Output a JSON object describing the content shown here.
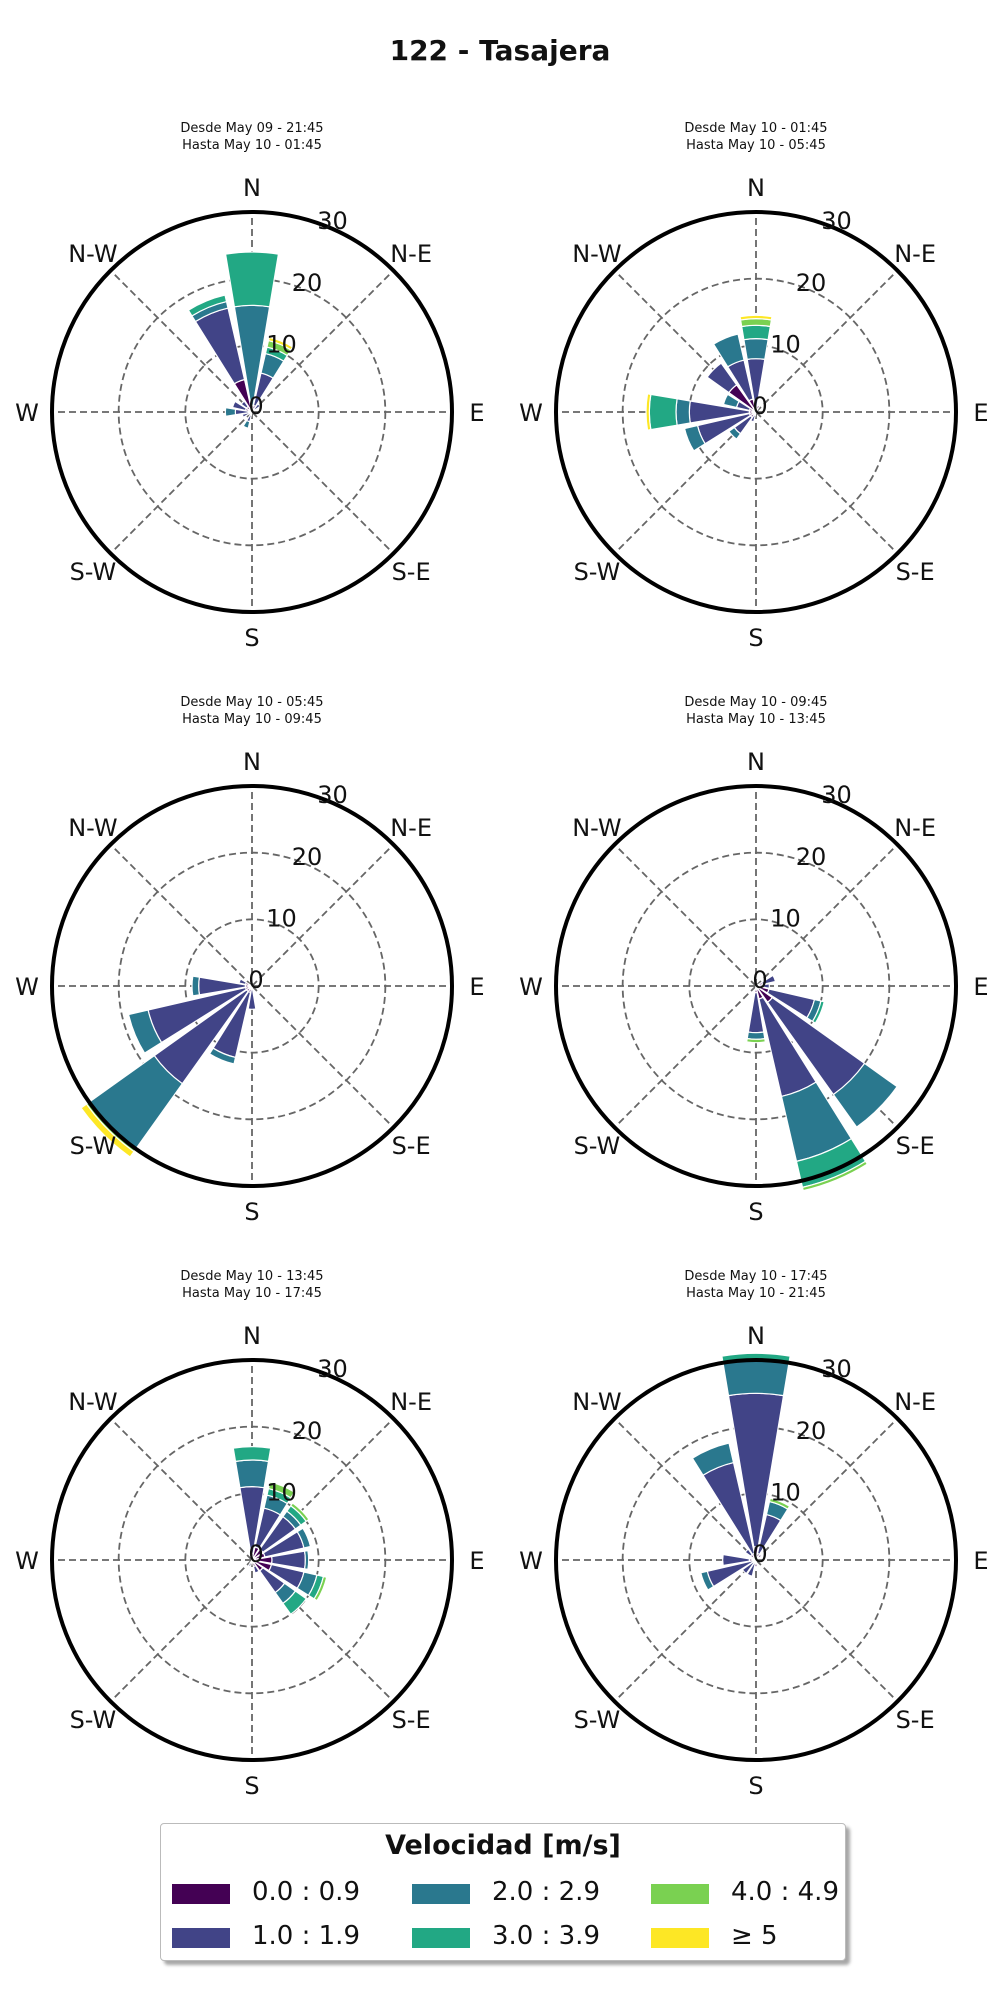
{
  "title": "122 - Tasajera",
  "legend": {
    "title": "Velocidad [m/s]",
    "bins": [
      {
        "label": "0.0 : 0.9",
        "color": "#440154"
      },
      {
        "label": "1.0 : 1.9",
        "color": "#414487"
      },
      {
        "label": "2.0 : 2.9",
        "color": "#2a788e"
      },
      {
        "label": "3.0 : 3.9",
        "color": "#22a884"
      },
      {
        "label": "4.0 : 4.9",
        "color": "#7ad151"
      },
      {
        "label": "≥  5",
        "color": "#fde725"
      }
    ]
  },
  "chart_data": [
    {
      "type": "windrose",
      "title_line1": "Desde May 09 - 21:45",
      "title_line2": "Hasta May 10 - 01:45",
      "direction_labels": [
        "N",
        "N-E",
        "E",
        "S-E",
        "S",
        "S-W",
        "W",
        "N-W"
      ],
      "rings": [
        0,
        10,
        20,
        30
      ],
      "rmax": 30,
      "sectors": [
        {
          "dir": 0,
          "values": [
            1,
            0,
            15,
            8,
            0,
            0
          ]
        },
        {
          "dir": 22.5,
          "values": [
            1,
            5,
            3,
            1,
            1,
            0.5
          ]
        },
        {
          "dir": 45,
          "values": [
            0.5,
            1,
            0,
            0,
            0,
            0
          ]
        },
        {
          "dir": 202.5,
          "values": [
            0.5,
            1,
            1,
            0,
            0,
            0
          ]
        },
        {
          "dir": 247.5,
          "values": [
            0.5,
            1,
            0,
            0,
            0,
            0
          ]
        },
        {
          "dir": 270,
          "values": [
            0.5,
            2,
            1.5,
            0,
            0,
            0
          ]
        },
        {
          "dir": 292.5,
          "values": [
            1,
            2,
            0,
            0,
            0,
            0
          ]
        },
        {
          "dir": 315,
          "values": [
            1,
            1,
            0,
            0,
            0,
            0
          ]
        },
        {
          "dir": 337.5,
          "values": [
            5,
            11,
            1,
            1,
            0,
            0
          ]
        }
      ]
    },
    {
      "type": "windrose",
      "title_line1": "Desde May 10 - 01:45",
      "title_line2": "Hasta May 10 - 05:45",
      "direction_labels": [
        "N",
        "N-E",
        "E",
        "S-E",
        "S",
        "S-W",
        "W",
        "N-W"
      ],
      "rings": [
        0,
        10,
        20,
        30
      ],
      "rmax": 30,
      "sectors": [
        {
          "dir": 0,
          "values": [
            0,
            8,
            3,
            2,
            1,
            0.5
          ]
        },
        {
          "dir": 22.5,
          "values": [
            1,
            0,
            0,
            0,
            0,
            0
          ]
        },
        {
          "dir": 202.5,
          "values": [
            0.5,
            1,
            0,
            0,
            0,
            0
          ]
        },
        {
          "dir": 225,
          "values": [
            1,
            3,
            1,
            0,
            0,
            0
          ]
        },
        {
          "dir": 247.5,
          "values": [
            1,
            8,
            2,
            0,
            0,
            0
          ]
        },
        {
          "dir": 270,
          "values": [
            1,
            9,
            2,
            4,
            0,
            0.5
          ]
        },
        {
          "dir": 292.5,
          "values": [
            1,
            2,
            2,
            0,
            0,
            0
          ]
        },
        {
          "dir": 315,
          "values": [
            5,
            4,
            0,
            0,
            0,
            0
          ]
        },
        {
          "dir": 337.5,
          "values": [
            2,
            6,
            4,
            0,
            0,
            0
          ]
        }
      ]
    },
    {
      "type": "windrose",
      "title_line1": "Desde May 10 - 05:45",
      "title_line2": "Hasta May 10 - 09:45",
      "direction_labels": [
        "N",
        "N-E",
        "E",
        "S-E",
        "S",
        "S-W",
        "W",
        "N-W"
      ],
      "rings": [
        0,
        10,
        20,
        30
      ],
      "rmax": 30,
      "sectors": [
        {
          "dir": 0,
          "values": [
            1,
            0,
            0,
            0,
            0,
            0
          ]
        },
        {
          "dir": 180,
          "values": [
            0.5,
            3,
            0,
            0,
            0,
            0
          ]
        },
        {
          "dir": 202.5,
          "values": [
            1,
            10,
            1,
            0,
            0,
            0
          ]
        },
        {
          "dir": 225,
          "values": [
            1,
            17,
            12,
            0,
            0.5,
            1
          ]
        },
        {
          "dir": 247.5,
          "values": [
            1,
            15,
            3,
            0,
            0,
            0
          ]
        },
        {
          "dir": 270,
          "values": [
            1,
            7,
            1,
            0,
            0,
            0
          ]
        },
        {
          "dir": 292.5,
          "values": [
            1,
            1,
            0,
            0,
            0,
            0
          ]
        }
      ]
    },
    {
      "type": "windrose",
      "title_line1": "Desde May 10 - 09:45",
      "title_line2": "Hasta May 10 - 13:45",
      "direction_labels": [
        "N",
        "N-E",
        "E",
        "S-E",
        "S",
        "S-W",
        "W",
        "N-W"
      ],
      "rings": [
        0,
        10,
        20,
        30
      ],
      "rmax": 30,
      "sectors": [
        {
          "dir": 67.5,
          "values": [
            1,
            2,
            0,
            0,
            0,
            0
          ]
        },
        {
          "dir": 90,
          "values": [
            1,
            1,
            0,
            0,
            0,
            0
          ]
        },
        {
          "dir": 112.5,
          "values": [
            2,
            7,
            1,
            0.5,
            0,
            0
          ]
        },
        {
          "dir": 135,
          "values": [
            3,
            17,
            6,
            0,
            0,
            0
          ]
        },
        {
          "dir": 157.5,
          "values": [
            2,
            15,
            10,
            4,
            0.5,
            0
          ]
        },
        {
          "dir": 180,
          "values": [
            1,
            6,
            1,
            0,
            0.5,
            0
          ]
        }
      ]
    },
    {
      "type": "windrose",
      "title_line1": "Desde May 10 - 13:45",
      "title_line2": "Hasta May 10 - 17:45",
      "direction_labels": [
        "N",
        "N-E",
        "E",
        "S-E",
        "S",
        "S-W",
        "W",
        "N-W"
      ],
      "rings": [
        0,
        10,
        20,
        30
      ],
      "rmax": 30,
      "sectors": [
        {
          "dir": 0,
          "values": [
            1,
            10,
            4,
            2,
            0,
            0
          ]
        },
        {
          "dir": 22.5,
          "values": [
            2,
            6,
            2,
            1,
            1,
            0
          ]
        },
        {
          "dir": 45,
          "values": [
            2,
            6,
            1,
            1,
            0.5,
            0
          ]
        },
        {
          "dir": 67.5,
          "values": [
            2,
            6,
            1,
            0,
            0,
            0
          ]
        },
        {
          "dir": 90,
          "values": [
            3,
            5,
            0.5,
            0,
            0,
            0
          ]
        },
        {
          "dir": 112.5,
          "values": [
            3,
            5,
            2,
            1,
            0.5,
            0
          ]
        },
        {
          "dir": 135,
          "values": [
            2,
            4,
            2,
            2,
            0,
            0
          ]
        },
        {
          "dir": 157.5,
          "values": [
            1,
            1,
            0,
            0,
            0,
            0
          ]
        },
        {
          "dir": 202.5,
          "values": [
            0.5,
            0.5,
            0,
            0,
            0,
            0
          ]
        }
      ]
    },
    {
      "type": "windrose",
      "title_line1": "Desde May 10 - 17:45",
      "title_line2": "Hasta May 10 - 21:45",
      "direction_labels": [
        "N",
        "N-E",
        "E",
        "S-E",
        "S",
        "S-W",
        "W",
        "N-W"
      ],
      "rings": [
        0,
        10,
        20,
        30
      ],
      "rmax": 30,
      "sectors": [
        {
          "dir": 0,
          "values": [
            2,
            23,
            5,
            1,
            0,
            0
          ]
        },
        {
          "dir": 22.5,
          "values": [
            1,
            6,
            2,
            0,
            0.5,
            0
          ]
        },
        {
          "dir": 45,
          "values": [
            1,
            0,
            0,
            0,
            0,
            0
          ]
        },
        {
          "dir": 180,
          "values": [
            1,
            0,
            0,
            0,
            0,
            0
          ]
        },
        {
          "dir": 202.5,
          "values": [
            0.5,
            2,
            0,
            0,
            0,
            0
          ]
        },
        {
          "dir": 225,
          "values": [
            0.5,
            2,
            0,
            0,
            0,
            0
          ]
        },
        {
          "dir": 247.5,
          "values": [
            0.5,
            7,
            1,
            0,
            0,
            0
          ]
        },
        {
          "dir": 270,
          "values": [
            1,
            4,
            0,
            0,
            0,
            0
          ]
        },
        {
          "dir": 315,
          "values": [
            1,
            1,
            0,
            0,
            0,
            0
          ]
        },
        {
          "dir": 337.5,
          "values": [
            1,
            14,
            3,
            0,
            0,
            0
          ]
        }
      ]
    }
  ]
}
